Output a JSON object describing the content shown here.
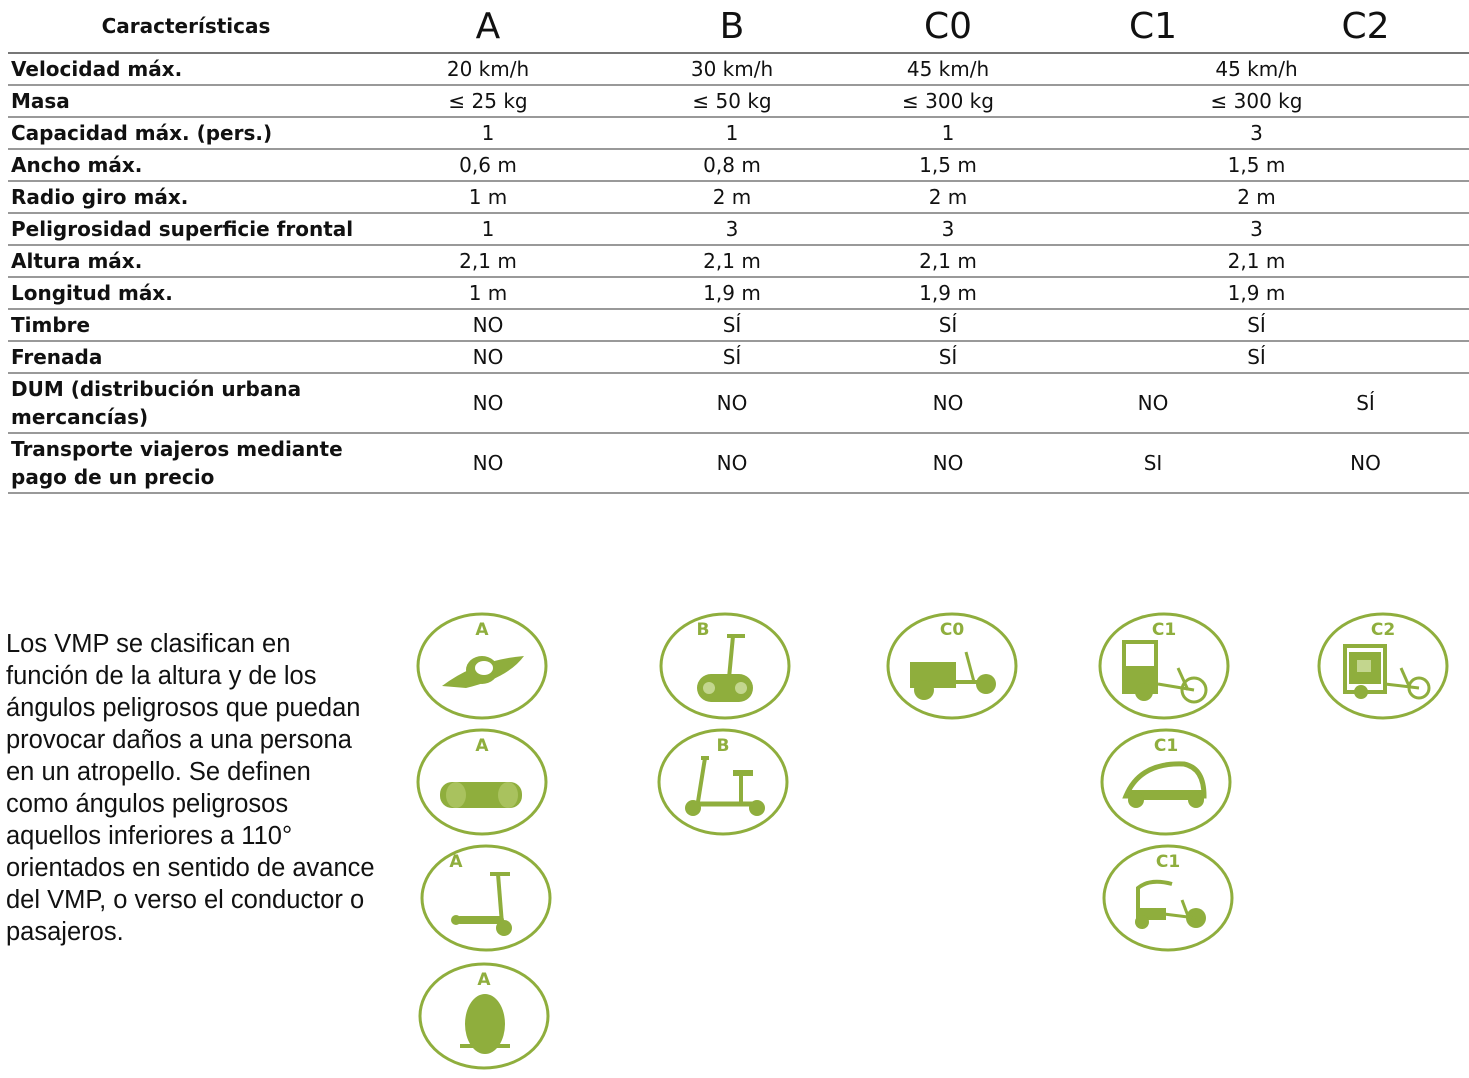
{
  "table": {
    "header": [
      "Características",
      "A",
      "B",
      "C0",
      "C1",
      "C2"
    ],
    "rows": [
      {
        "label": "Velocidad máx.",
        "a": "20 km/h",
        "b": "30 km/h",
        "c0": "45 km/h",
        "c12": "45 km/h"
      },
      {
        "label": "Masa",
        "a": "≤ 25 kg",
        "b": "≤ 50 kg",
        "c0": "≤ 300 kg",
        "c12": "≤ 300 kg"
      },
      {
        "label": "Capacidad máx. (pers.)",
        "a": "1",
        "b": "1",
        "c0": "1",
        "c12": "3"
      },
      {
        "label": "Ancho máx.",
        "a": "0,6 m",
        "b": "0,8 m",
        "c0": "1,5 m",
        "c12": "1,5 m"
      },
      {
        "label": "Radio giro máx.",
        "a": "1 m",
        "b": "2 m",
        "c0": "2 m",
        "c12": "2 m"
      },
      {
        "label": "Peligrosidad superficie frontal",
        "a": "1",
        "b": "3",
        "c0": "3",
        "c12": "3"
      },
      {
        "label": "Altura máx.",
        "a": "2,1 m",
        "b": "2,1 m",
        "c0": "2,1 m",
        "c12": "2,1 m"
      },
      {
        "label": "Longitud máx.",
        "a": "1 m",
        "b": "1,9 m",
        "c0": "1,9 m",
        "c12": "1,9 m"
      },
      {
        "label": "Timbre",
        "a": "NO",
        "b": "SÍ",
        "c0": "SÍ",
        "c12": "SÍ"
      },
      {
        "label": "Frenada",
        "a": "NO",
        "b": "SÍ",
        "c0": "SÍ",
        "c12": "SÍ"
      }
    ],
    "split_rows": [
      {
        "label": "DUM (distribución urbana mercancías)",
        "a": "NO",
        "b": "NO",
        "c0": "NO",
        "c1": "NO",
        "c2": "SÍ"
      },
      {
        "label": "Transporte viajeros mediante pago de un precio",
        "a": "NO",
        "b": "NO",
        "c0": "NO",
        "c1": "SI",
        "c2": "NO"
      }
    ]
  },
  "description": "Los VMP se clasifican en función de la altura y de los ángulos peligrosos que puedan provocar daños a una persona en un atropello. Se definen como ángulos peligrosos aquellos inferiores a 110° orientados en sentido de avance del VMP, o verso el conductor o pasajeros.",
  "icons": {
    "a_hoverboard_disc": {
      "label": "A",
      "icon": "hoverboard-disc-icon"
    },
    "a_hoverboard": {
      "label": "A",
      "icon": "hoverboard-icon"
    },
    "a_scooter": {
      "label": "A",
      "icon": "kick-scooter-icon"
    },
    "a_monowheel": {
      "label": "A",
      "icon": "monowheel-icon"
    },
    "b_segway": {
      "label": "B",
      "icon": "segway-icon"
    },
    "b_seated_scooter": {
      "label": "B",
      "icon": "seated-scooter-icon"
    },
    "c0_cargo": {
      "label": "C0",
      "icon": "cargo-bike-icon"
    },
    "c1_rickshaw": {
      "label": "C1",
      "icon": "rickshaw-icon"
    },
    "c1_pod": {
      "label": "C1",
      "icon": "pod-trike-icon"
    },
    "c1_canopy": {
      "label": "C1",
      "icon": "canopy-trike-icon"
    },
    "c2_delivery": {
      "label": "C2",
      "icon": "delivery-trike-icon"
    }
  },
  "colors": {
    "icon_green": "#8fae3d",
    "rule": "#999999"
  }
}
